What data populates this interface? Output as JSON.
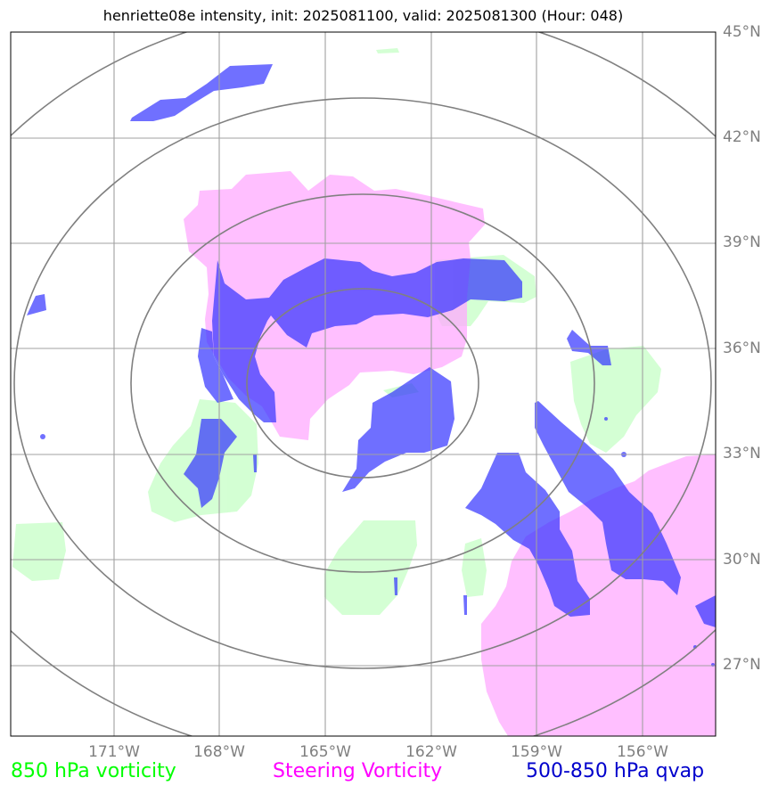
{
  "title": "henriette08e intensity, init: 2025081100, valid: 2025081300 (Hour: 048)",
  "map": {
    "lat_labels": [
      "45°N",
      "42°N",
      "39°N",
      "36°N",
      "33°N",
      "30°N",
      "27°N"
    ],
    "lon_labels": [
      "171°W",
      "168°W",
      "165°W",
      "162°W",
      "159°W",
      "156°W"
    ],
    "grid": true,
    "range_rings_center": "164°W, 35°N"
  },
  "legend": {
    "items": [
      {
        "label": "850 hPa vorticity",
        "color": "#00ff00"
      },
      {
        "label": "Steering Vorticity",
        "color": "#ff00ff"
      },
      {
        "label": "500-850 hPa qvap",
        "color": "#0000cc"
      }
    ]
  },
  "colors": {
    "vort850_fill": "#ccffcc",
    "steering_fill": "#ffaaff",
    "qvap_fill": "#3333ff"
  }
}
